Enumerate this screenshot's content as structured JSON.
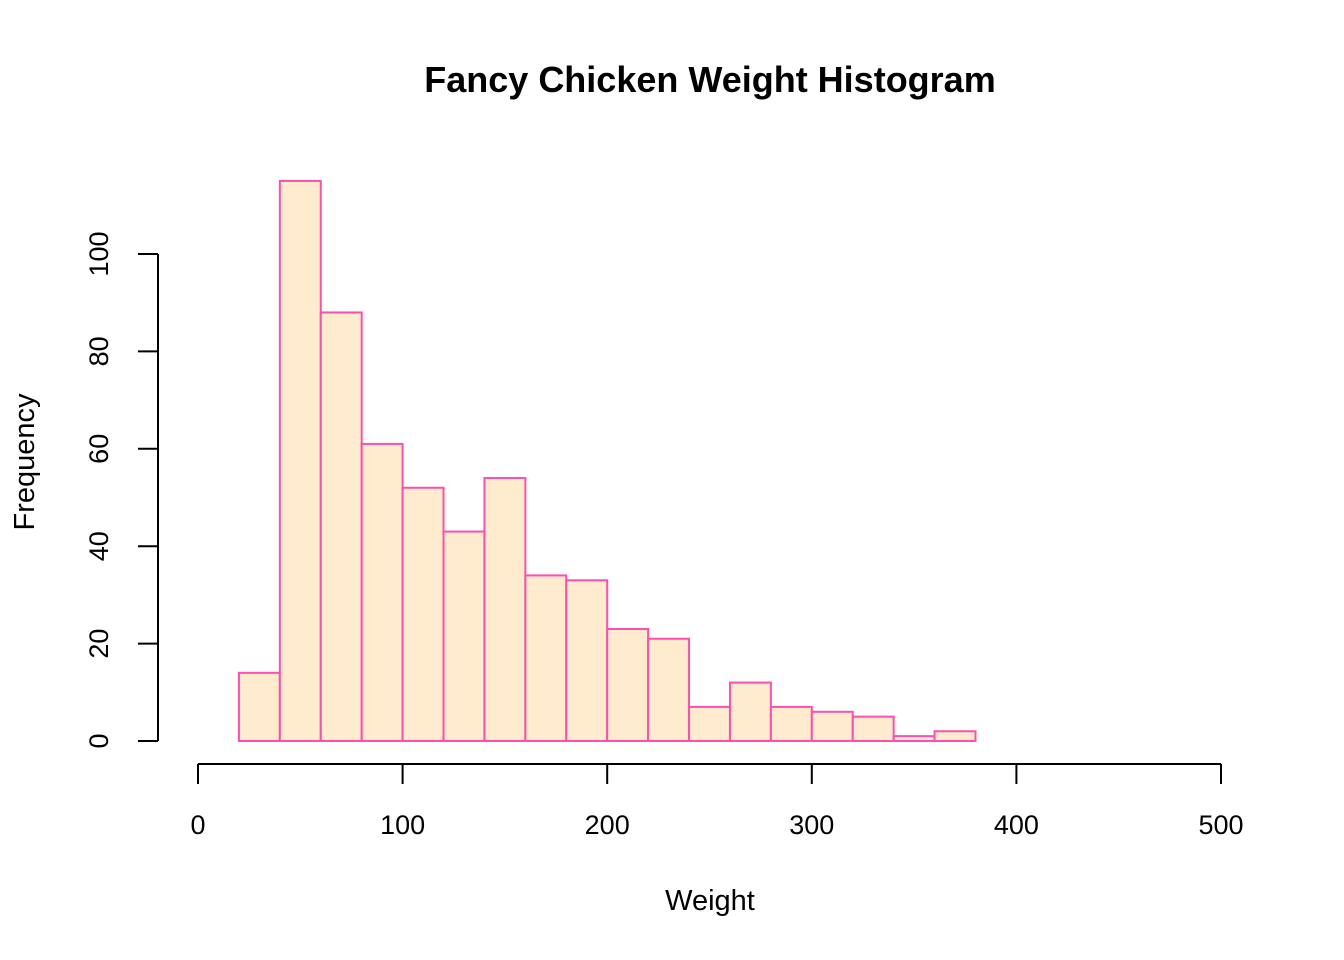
{
  "chart_data": {
    "type": "bar",
    "title": "Fancy Chicken Weight Histogram",
    "xlabel": "Weight",
    "ylabel": "Frequency",
    "xlim": [
      0,
      500
    ],
    "ylim": [
      0,
      115
    ],
    "x_ticks": [
      "0",
      "100",
      "200",
      "300",
      "400",
      "500"
    ],
    "y_ticks": [
      "0",
      "20",
      "40",
      "60",
      "80",
      "100"
    ],
    "bin_width": 20,
    "bins": [
      {
        "start": 20,
        "end": 40,
        "count": 14
      },
      {
        "start": 40,
        "end": 60,
        "count": 115
      },
      {
        "start": 60,
        "end": 80,
        "count": 88
      },
      {
        "start": 80,
        "end": 100,
        "count": 61
      },
      {
        "start": 100,
        "end": 120,
        "count": 52
      },
      {
        "start": 120,
        "end": 140,
        "count": 43
      },
      {
        "start": 140,
        "end": 160,
        "count": 54
      },
      {
        "start": 160,
        "end": 180,
        "count": 34
      },
      {
        "start": 180,
        "end": 200,
        "count": 33
      },
      {
        "start": 200,
        "end": 220,
        "count": 23
      },
      {
        "start": 220,
        "end": 240,
        "count": 21
      },
      {
        "start": 240,
        "end": 260,
        "count": 7
      },
      {
        "start": 260,
        "end": 280,
        "count": 12
      },
      {
        "start": 280,
        "end": 300,
        "count": 7
      },
      {
        "start": 300,
        "end": 320,
        "count": 6
      },
      {
        "start": 320,
        "end": 340,
        "count": 5
      },
      {
        "start": 340,
        "end": 360,
        "count": 1
      },
      {
        "start": 360,
        "end": 380,
        "count": 2
      }
    ],
    "fill_color": "#FFEBCD",
    "border_color": "#FF4FAE",
    "grid": false
  }
}
